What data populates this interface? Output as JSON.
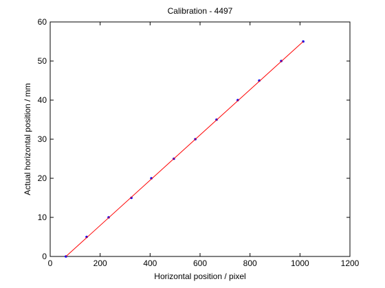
{
  "chart_data": {
    "type": "scatter",
    "title": "Calibration - 4497",
    "xlabel": "Horizontal position / pixel",
    "ylabel": "Actual horizontal position / mm",
    "xlim": [
      0,
      1200
    ],
    "ylim": [
      0,
      60
    ],
    "xticks": [
      0,
      200,
      400,
      600,
      800,
      1000,
      1200
    ],
    "yticks": [
      0,
      10,
      20,
      30,
      40,
      50,
      60
    ],
    "series": [
      {
        "color": "#0000ff",
        "style": "markers",
        "x": [
          63,
          146,
          234,
          325,
          405,
          495,
          581,
          666,
          751,
          837,
          925,
          1013
        ],
        "values": [
          0,
          5,
          10,
          15,
          20,
          25,
          30,
          35,
          40,
          45,
          50,
          55
        ]
      },
      {
        "color": "#ff0000",
        "style": "line",
        "x": [
          63,
          1013
        ],
        "values": [
          0,
          55
        ]
      }
    ]
  }
}
